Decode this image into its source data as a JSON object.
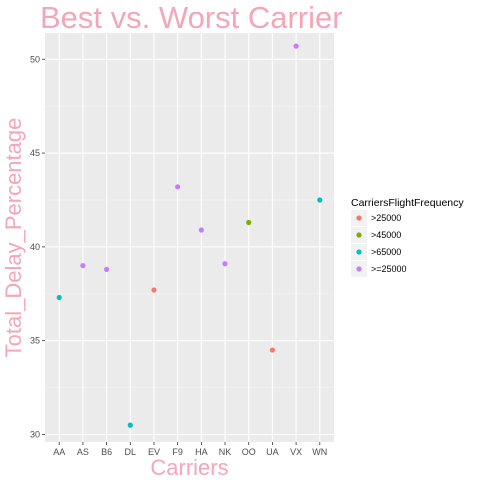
{
  "chart_data": {
    "type": "scatter",
    "title": "Best vs. Worst Carrier",
    "xlabel": "Carriers",
    "ylabel": "Total_Delay_Percentage",
    "categories": [
      "AA",
      "AS",
      "B6",
      "DL",
      "EV",
      "F9",
      "HA",
      "NK",
      "OO",
      "UA",
      "VX",
      "WN"
    ],
    "ylim": [
      29.6,
      51.4
    ],
    "yticks": [
      30,
      35,
      40,
      45,
      50
    ],
    "grid": true,
    "legend": {
      "title": "CarriersFlightFrequency",
      "position": "right",
      "entries": [
        ">25000",
        ">45000",
        ">65000",
        ">=25000"
      ]
    },
    "series": [
      {
        "name": ">25000",
        "color": "#F8766D",
        "points": [
          {
            "x": "EV",
            "y": 37.7
          },
          {
            "x": "UA",
            "y": 34.5
          }
        ]
      },
      {
        "name": ">45000",
        "color": "#7CAE00",
        "points": [
          {
            "x": "OO",
            "y": 41.3
          }
        ]
      },
      {
        "name": ">65000",
        "color": "#00BFC4",
        "points": [
          {
            "x": "AA",
            "y": 37.3
          },
          {
            "x": "DL",
            "y": 30.5
          },
          {
            "x": "WN",
            "y": 42.5
          }
        ]
      },
      {
        "name": ">=25000",
        "color": "#C77CFF",
        "points": [
          {
            "x": "AS",
            "y": 39.0
          },
          {
            "x": "B6",
            "y": 38.8
          },
          {
            "x": "F9",
            "y": 43.2
          },
          {
            "x": "HA",
            "y": 40.9
          },
          {
            "x": "NK",
            "y": 39.1
          },
          {
            "x": "VX",
            "y": 50.7
          }
        ]
      }
    ],
    "colors": {
      "title": "#F4A6B8",
      "axis_title": "#F4A6B8",
      "panel": "#EBEBEB",
      "grid_major": "#FFFFFF",
      "grid_minor": "#F5F5F5"
    }
  }
}
